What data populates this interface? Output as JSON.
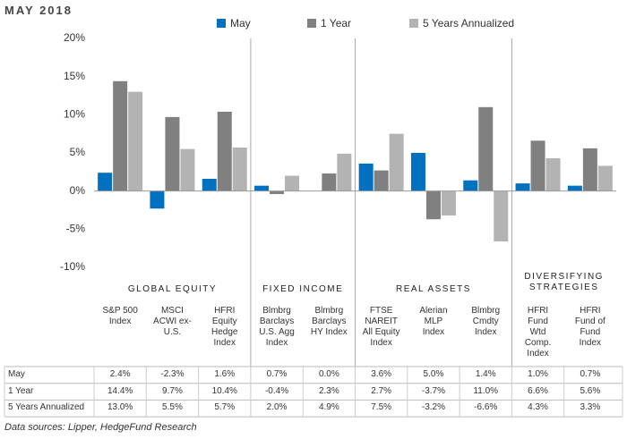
{
  "chart_data": {
    "type": "bar",
    "title": "MAY 2018",
    "groups": [
      {
        "name": "GLOBAL EQUITY",
        "categories": [
          "S&P 500\nIndex",
          "MSCI\nACWI ex-\nU.S.",
          "HFRI\nEquity\nHedge\nIndex"
        ]
      },
      {
        "name": "FIXED INCOME",
        "categories": [
          "Blmbrg\nBarclays\nU.S. Agg\nIndex",
          "Blmbrg\nBarclays\nHY Index"
        ]
      },
      {
        "name": "REAL ASSETS",
        "categories": [
          "FTSE\nNAREIT\nAll Equity\nIndex",
          "Alerian\nMLP\nIndex",
          "Blmbrg\nCmdty\nIndex"
        ]
      },
      {
        "name": "DIVERSIFYING\nSTRATEGIES",
        "categories": [
          "HFRI\nFund\nWtd\nComp.\nIndex",
          "HFRI\nFund of\nFund\nIndex"
        ]
      }
    ],
    "series": [
      {
        "name": "May",
        "color": "#0070c0",
        "values": [
          2.4,
          -2.3,
          1.6,
          0.7,
          0.0,
          3.6,
          5.0,
          1.4,
          1.0,
          0.7
        ],
        "value_labels": [
          "2.4%",
          "-2.3%",
          "1.6%",
          "0.7%",
          "0.0%",
          "3.6%",
          "5.0%",
          "1.4%",
          "1.0%",
          "0.7%"
        ]
      },
      {
        "name": "1 Year",
        "color": "#808080",
        "values": [
          14.4,
          9.7,
          10.4,
          -0.4,
          2.3,
          2.7,
          -3.7,
          11.0,
          6.6,
          5.6
        ],
        "value_labels": [
          "14.4%",
          "9.7%",
          "10.4%",
          "-0.4%",
          "2.3%",
          "2.7%",
          "-3.7%",
          "11.0%",
          "6.6%",
          "5.6%"
        ]
      },
      {
        "name": "5 Years Annualized",
        "color": "#b3b3b3",
        "values": [
          13.0,
          5.5,
          5.7,
          2.0,
          4.9,
          7.5,
          -3.2,
          -6.6,
          4.3,
          3.3
        ],
        "value_labels": [
          "13.0%",
          "5.5%",
          "5.7%",
          "2.0%",
          "4.9%",
          "7.5%",
          "-3.2%",
          "-6.6%",
          "4.3%",
          "3.3%"
        ]
      }
    ],
    "ylim": [
      -10,
      20
    ],
    "yticks": [
      {
        "value": 20,
        "label": "20%"
      },
      {
        "value": 15,
        "label": "15%"
      },
      {
        "value": 10,
        "label": "10%"
      },
      {
        "value": 5,
        "label": "5%"
      },
      {
        "value": 0,
        "label": "0%"
      },
      {
        "value": -5,
        "label": "-5%"
      },
      {
        "value": -10,
        "label": "-10%"
      }
    ],
    "grid": false,
    "footnote": "Data sources: Lipper, HedgeFund Research"
  }
}
